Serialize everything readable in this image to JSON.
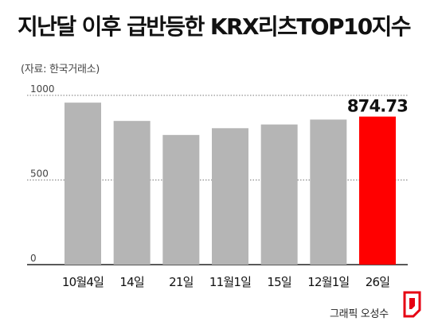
{
  "title": "지난달 이후 급반등한 KRX리츠TOP10지수",
  "source": "(자료: 한국거래소)",
  "credit": "그래픽 오성수",
  "colors": {
    "bar": "#b5b5b5",
    "highlight": "#ff0000",
    "grid": "#777777"
  },
  "chart_data": {
    "type": "bar",
    "title": "지난달 이후 급반등한 KRX리츠TOP10지수",
    "xlabel": "",
    "ylabel": "",
    "categories": [
      "10월4일",
      "14일",
      "21일",
      "11월1일",
      "15일",
      "12월1일",
      "26일"
    ],
    "values": [
      957,
      849,
      766,
      806,
      828,
      857,
      874.73
    ],
    "value_labels": [
      "",
      "",
      "",
      "",
      "",
      "",
      "874.73"
    ],
    "ylim": [
      0,
      1000
    ],
    "yticks": [
      "0",
      "500",
      "1000"
    ],
    "ytick_values": [
      0,
      500,
      1000
    ],
    "highlight_index": 6,
    "grid": true,
    "gridline_style": "dotted"
  }
}
